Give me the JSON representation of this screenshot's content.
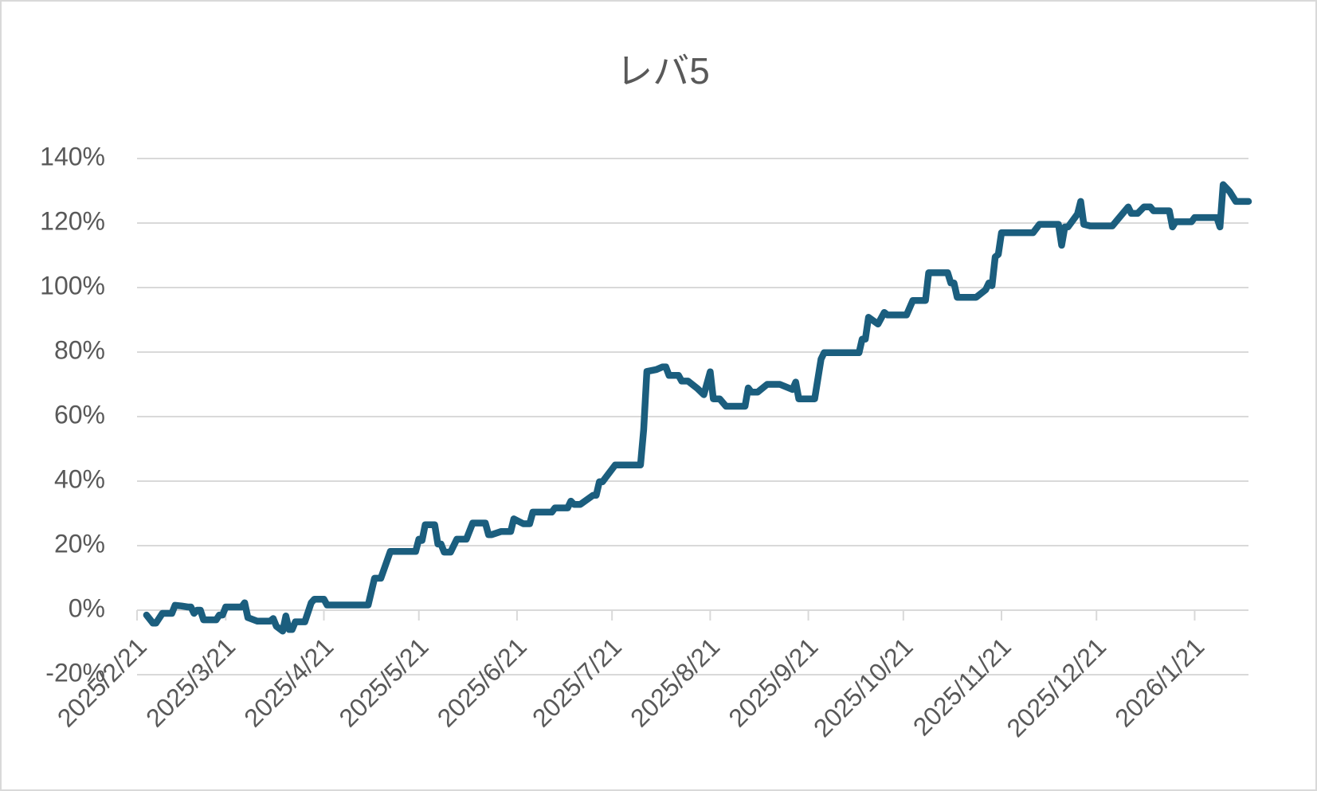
{
  "chart_data": {
    "type": "line",
    "title": "レバ5",
    "color": "#1b5e7e",
    "grid": true,
    "ylim": [
      -20,
      140
    ],
    "yticks": [
      {
        "value": -20,
        "label": "-20%"
      },
      {
        "value": 0,
        "label": "0%"
      },
      {
        "value": 20,
        "label": "20%"
      },
      {
        "value": 40,
        "label": "40%"
      },
      {
        "value": 60,
        "label": "60%"
      },
      {
        "value": 80,
        "label": "80%"
      },
      {
        "value": 100,
        "label": "100%"
      },
      {
        "value": 120,
        "label": "120%"
      },
      {
        "value": 140,
        "label": "140%"
      }
    ],
    "xlim": [
      "2025-02-21",
      "2026-02-07"
    ],
    "xticks": [
      {
        "value": "2025-02-21",
        "label": "2025/2/21"
      },
      {
        "value": "2025-03-21",
        "label": "2025/3/21"
      },
      {
        "value": "2025-04-21",
        "label": "2025/4/21"
      },
      {
        "value": "2025-05-21",
        "label": "2025/5/21"
      },
      {
        "value": "2025-06-21",
        "label": "2025/6/21"
      },
      {
        "value": "2025-07-21",
        "label": "2025/7/21"
      },
      {
        "value": "2025-08-21",
        "label": "2025/8/21"
      },
      {
        "value": "2025-09-21",
        "label": "2025/9/21"
      },
      {
        "value": "2025-10-21",
        "label": "2025/10/21"
      },
      {
        "value": "2025-11-21",
        "label": "2025/11/21"
      },
      {
        "value": "2025-12-21",
        "label": "2025/12/21"
      },
      {
        "value": "2026-01-21",
        "label": "2026/1/21"
      }
    ],
    "x": [
      "2025-02-24",
      "2025-02-26",
      "2025-02-27",
      "2025-03-01",
      "2025-03-04",
      "2025-03-05",
      "2025-03-07",
      "2025-03-09",
      "2025-03-10",
      "2025-03-11",
      "2025-03-12",
      "2025-03-13",
      "2025-03-14",
      "2025-03-18",
      "2025-03-19",
      "2025-03-20",
      "2025-03-21",
      "2025-03-26",
      "2025-03-27",
      "2025-03-28",
      "2025-03-31",
      "2025-04-04",
      "2025-04-05",
      "2025-04-06",
      "2025-04-08",
      "2025-04-09",
      "2025-04-10",
      "2025-04-11",
      "2025-04-12",
      "2025-04-15",
      "2025-04-17",
      "2025-04-18",
      "2025-04-21",
      "2025-04-22",
      "2025-05-05",
      "2025-05-07",
      "2025-05-09",
      "2025-05-12",
      "2025-05-20",
      "2025-05-21",
      "2025-05-22",
      "2025-05-23",
      "2025-05-26",
      "2025-05-27",
      "2025-05-28",
      "2025-05-29",
      "2025-05-31",
      "2025-06-02",
      "2025-06-05",
      "2025-06-07",
      "2025-06-11",
      "2025-06-12",
      "2025-06-13",
      "2025-06-16",
      "2025-06-19",
      "2025-06-20",
      "2025-06-23",
      "2025-06-25",
      "2025-06-26",
      "2025-07-02",
      "2025-07-03",
      "2025-07-07",
      "2025-07-08",
      "2025-07-09",
      "2025-07-11",
      "2025-07-15",
      "2025-07-16",
      "2025-07-17",
      "2025-07-18",
      "2025-07-22",
      "2025-07-30",
      "2025-07-31",
      "2025-08-01",
      "2025-08-04",
      "2025-08-06",
      "2025-08-07",
      "2025-08-08",
      "2025-08-11",
      "2025-08-12",
      "2025-08-14",
      "2025-08-17",
      "2025-08-19",
      "2025-08-21",
      "2025-08-22",
      "2025-08-24",
      "2025-08-26",
      "2025-09-01",
      "2025-09-02",
      "2025-09-03",
      "2025-09-05",
      "2025-09-08",
      "2025-09-12",
      "2025-09-16",
      "2025-09-17",
      "2025-09-18",
      "2025-09-23",
      "2025-09-25",
      "2025-09-26",
      "2025-10-07",
      "2025-10-08",
      "2025-10-09",
      "2025-10-10",
      "2025-10-13",
      "2025-10-15",
      "2025-10-16",
      "2025-10-22",
      "2025-10-24",
      "2025-10-28",
      "2025-10-29",
      "2025-11-04",
      "2025-11-05",
      "2025-11-06",
      "2025-11-07",
      "2025-11-13",
      "2025-11-16",
      "2025-11-17",
      "2025-11-18",
      "2025-11-19",
      "2025-11-20",
      "2025-11-21",
      "2025-12-01",
      "2025-12-03",
      "2025-12-09",
      "2025-12-10",
      "2025-12-11",
      "2025-12-12",
      "2025-12-15",
      "2025-12-16",
      "2025-12-17",
      "2025-12-19",
      "2025-12-26",
      "2025-12-31",
      "2026-01-01",
      "2026-01-03",
      "2026-01-05",
      "2026-01-07",
      "2026-01-08",
      "2026-01-13",
      "2026-01-14",
      "2026-01-15",
      "2026-01-20",
      "2026-01-21",
      "2026-01-28",
      "2026-01-29",
      "2026-01-30",
      "2026-02-01",
      "2026-02-03",
      "2026-02-07"
    ],
    "values": [
      -1.5,
      -4,
      -4,
      -1,
      -1,
      1.5,
      1.3,
      1,
      1,
      -1,
      0,
      0,
      -3,
      -3,
      -1.5,
      -1.5,
      1,
      1,
      2.3,
      -2.3,
      -3.4,
      -3.4,
      -2.6,
      -5,
      -6.5,
      -1.8,
      -6,
      -6,
      -3.6,
      -3.6,
      2.3,
      3.4,
      3.4,
      1.6,
      1.6,
      9.9,
      9.9,
      18.2,
      18.2,
      22,
      21.6,
      26.5,
      26.5,
      20.5,
      20.5,
      18,
      18,
      22,
      22,
      27,
      27,
      23.4,
      23.4,
      24.4,
      24.4,
      28.3,
      26.8,
      26.8,
      30.4,
      30.4,
      31.7,
      31.7,
      33.8,
      32.8,
      32.8,
      35.6,
      35.6,
      39.8,
      39.8,
      45,
      45,
      56,
      74,
      74.6,
      75.4,
      75.4,
      72.8,
      72.8,
      71,
      71,
      68.7,
      66.8,
      73.9,
      65.5,
      65.5,
      63.2,
      63.2,
      68.9,
      67.6,
      67.6,
      70,
      70,
      68.4,
      70.7,
      65.5,
      65.5,
      77.8,
      79.8,
      79.8,
      84,
      84,
      90.8,
      88.7,
      92.3,
      91.5,
      91.5,
      96,
      96,
      104.6,
      104.6,
      101.4,
      101.4,
      97,
      97,
      99.3,
      101.4,
      100.6,
      109.5,
      110.3,
      117,
      117,
      119.6,
      119.6,
      113.1,
      118.8,
      118.8,
      122.8,
      126.7,
      119.6,
      119.1,
      119.1,
      125,
      123,
      123,
      125,
      125,
      123.8,
      123.8,
      118.8,
      120.4,
      120.4,
      121.7,
      121.7,
      118.8,
      131.9,
      129.8,
      126.7,
      126.7
    ]
  }
}
